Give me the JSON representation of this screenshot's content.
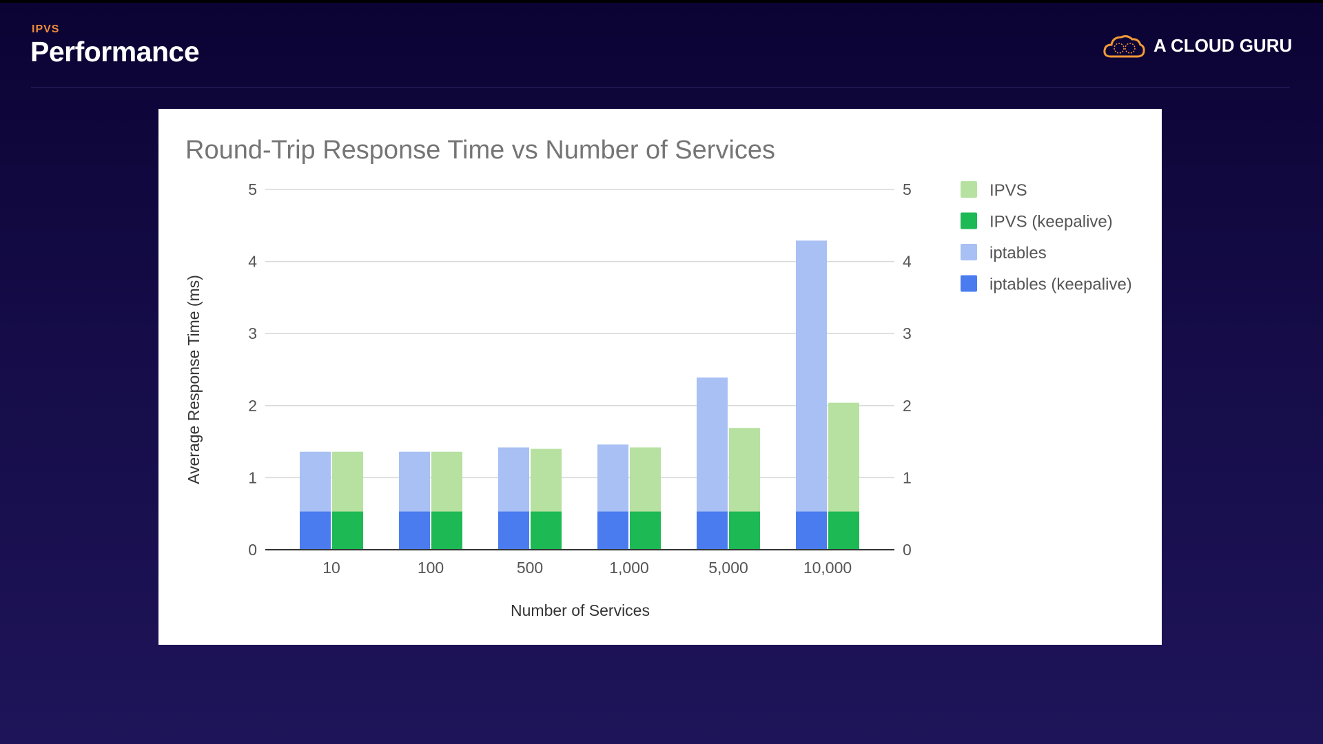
{
  "header": {
    "kicker": "IPVS",
    "title": "Performance",
    "logo_text": "A CLOUD GURU"
  },
  "chart_data": {
    "type": "bar",
    "title": "Round-Trip Response Time vs Number of Services",
    "xlabel": "Number of Services",
    "ylabel": "Average Response Time (ms)",
    "ylim": [
      0,
      5
    ],
    "yticks": [
      0,
      1,
      2,
      3,
      4,
      5
    ],
    "grid": true,
    "legend_position": "right",
    "categories": [
      "10",
      "100",
      "500",
      "1,000",
      "5,000",
      "10,000"
    ],
    "series": [
      {
        "name": "IPVS",
        "color": "#b7e1a1",
        "values": [
          1.36,
          1.36,
          1.4,
          1.42,
          1.69,
          2.04
        ]
      },
      {
        "name": "IPVS (keepalive)",
        "color": "#1db954",
        "values": [
          0.53,
          0.53,
          0.53,
          0.53,
          0.53,
          0.53
        ]
      },
      {
        "name": "iptables",
        "color": "#a8c0f4",
        "values": [
          1.36,
          1.36,
          1.42,
          1.46,
          2.39,
          4.29
        ]
      },
      {
        "name": "iptables (keepalive)",
        "color": "#4a7cf0",
        "values": [
          0.53,
          0.53,
          0.53,
          0.53,
          0.53,
          0.53
        ]
      }
    ]
  }
}
